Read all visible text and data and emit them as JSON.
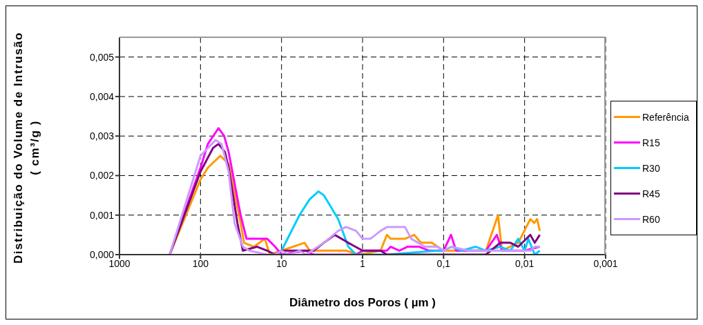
{
  "chart_data": {
    "type": "line",
    "xlabel": "Diâmetro dos Poros ( µm )",
    "ylabel": "Distribuição do Volume de Intrusão  ( cm³/g )",
    "log": "x",
    "grid": true,
    "legend": "right",
    "marker": "none",
    "line_style": "solid",
    "xlim": [
      1000,
      0.001
    ],
    "xticks": [
      1000,
      100,
      10,
      1,
      {
        "value": 0.1,
        "label": "0,1"
      },
      {
        "value": 0.01,
        "label": "0,01"
      },
      {
        "value": 0.001,
        "label": "0,001"
      }
    ],
    "ylim": [
      0,
      0.0055
    ],
    "yticks": [
      {
        "value": 0,
        "label": "0,000"
      },
      {
        "value": 0.001,
        "label": "0,001"
      },
      {
        "value": 0.002,
        "label": "0,002"
      },
      {
        "value": 0.003,
        "label": "0,003"
      },
      {
        "value": 0.004,
        "label": "0,004"
      },
      {
        "value": 0.005,
        "label": "0,005"
      }
    ],
    "series": [
      {
        "name": "Referência",
        "color": "#ff9900",
        "x": [
          240,
          100,
          81,
          57,
          45,
          32,
          29,
          22,
          16,
          14,
          10,
          5.2,
          4.5,
          1.6,
          1.1,
          0.6,
          0.5,
          0.45,
          0.3,
          0.23,
          0.19,
          0.14,
          0.1,
          0.03,
          0.0213,
          0.019,
          0.012,
          0.0085,
          0.0076,
          0.007,
          0.0065
        ],
        "values": [
          0,
          0.0019,
          0.0022,
          0.0025,
          0.0023,
          0.0008,
          0.0003,
          0.0002,
          0.0004,
          0,
          0.0001,
          0.0003,
          0.0001,
          0.0001,
          0,
          0.0001,
          0.0005,
          0.0004,
          0.0004,
          0.0005,
          0.0003,
          0.0003,
          0.0001,
          0.0001,
          0.001,
          0.0001,
          0.0003,
          0.0009,
          0.0008,
          0.0009,
          0.0006
        ]
      },
      {
        "name": "R15",
        "color": "#ff00ff",
        "x": [
          240,
          100,
          81,
          60,
          51,
          45,
          32,
          27,
          15,
          12,
          10,
          5,
          4,
          1.2,
          1,
          0.5,
          0.45,
          0.35,
          0.28,
          0.2,
          0.15,
          0.1,
          0.081,
          0.07,
          0.03,
          0.022,
          0.019,
          0.01,
          0.0065
        ],
        "values": [
          0,
          0.0022,
          0.0028,
          0.0032,
          0.003,
          0.0026,
          0.001,
          0.0004,
          0.0004,
          0.0002,
          0,
          0.0001,
          0,
          0,
          0.0001,
          0.0001,
          0.0002,
          0.0001,
          0.0002,
          0.0002,
          0.0001,
          0.0001,
          0.0005,
          0.0001,
          0.0001,
          0.0005,
          0.0001,
          0.0001,
          0.0002
        ]
      },
      {
        "name": "R30",
        "color": "#00ccff",
        "x": [
          12,
          10,
          6,
          4.5,
          3.5,
          3,
          2,
          1.5,
          1.2,
          0.5,
          0.12,
          0.1,
          0.08,
          0.06,
          0.04,
          0.03,
          0.02,
          0.015,
          0.012,
          0.01,
          0.009,
          0.0075,
          0.0065
        ],
        "values": [
          0,
          0.0001,
          0.001,
          0.0014,
          0.0016,
          0.0015,
          0.0009,
          0.0002,
          0,
          0,
          0.0001,
          0.0001,
          0.0002,
          0.0001,
          0.0002,
          0.0001,
          0.0002,
          0.0001,
          0.0004,
          0.0001,
          0.0004,
          0,
          0.0001
        ]
      },
      {
        "name": "R45",
        "color": "#800080",
        "x": [
          240,
          100,
          70,
          60,
          50,
          45,
          35,
          30,
          20,
          15,
          12,
          10,
          4,
          3,
          2.2,
          1.5,
          1,
          0.6,
          0.5,
          0.03,
          0.02,
          0.015,
          0.012,
          0.0085,
          0.0075,
          0.0065
        ],
        "values": [
          0,
          0.0021,
          0.0027,
          0.0028,
          0.0026,
          0.0022,
          0.0008,
          0.0001,
          0.0002,
          0.0001,
          0,
          0.0001,
          0.0001,
          0.0003,
          0.0005,
          0.0003,
          0.0001,
          0.0001,
          0,
          0,
          0.0003,
          0.0003,
          0.0002,
          0.0005,
          0.0003,
          0.0005
        ]
      },
      {
        "name": "R60",
        "color": "#cc99ff",
        "x": [
          240,
          100,
          65,
          55,
          45,
          38,
          30,
          25,
          15,
          12,
          10,
          8,
          6,
          5,
          3,
          2,
          1.6,
          1.2,
          1,
          0.8,
          0.6,
          0.5,
          0.3,
          0.25,
          0.17,
          0.12,
          0.1,
          0.08,
          0.05,
          0.02,
          0.0085,
          0.0075,
          0.0065
        ],
        "values": [
          0,
          0.0025,
          0.0029,
          0.0028,
          0.0021,
          0.0008,
          0.0002,
          0.0001,
          0,
          0,
          0.0001,
          0,
          0.0001,
          0,
          0.0003,
          0.0006,
          0.0007,
          0.0006,
          0.0004,
          0.0004,
          0.0006,
          0.0007,
          0.0007,
          0.0004,
          0.0002,
          0.0002,
          0.0001,
          0.0002,
          0.0001,
          0.0001,
          0.0001,
          0.0002,
          0.0002
        ]
      }
    ]
  }
}
